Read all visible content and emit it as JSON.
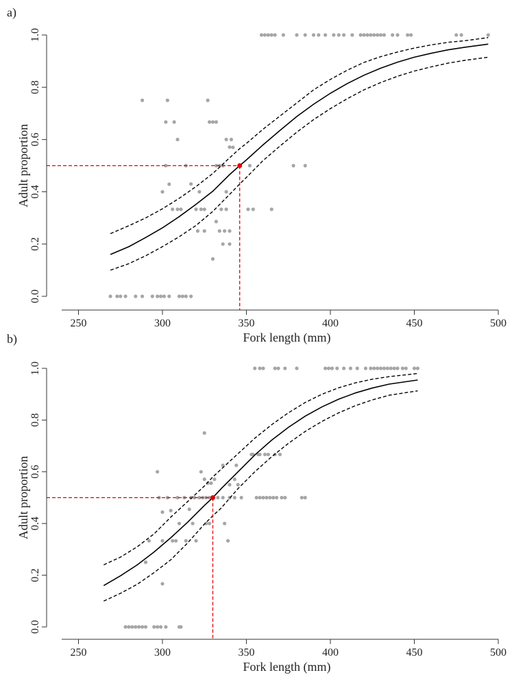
{
  "chart_data": [
    {
      "panel": "a)",
      "type": "scatter",
      "xlabel": "Fork length (mm)",
      "ylabel": "Adult proportion",
      "xlim": [
        240,
        500
      ],
      "ylim": [
        0,
        1
      ],
      "xticks": [
        250,
        300,
        350,
        400,
        450,
        500
      ],
      "yticks": [
        "0.0",
        "0.2",
        "0.4",
        "0.6",
        "0.8",
        "1.0"
      ],
      "grid": false,
      "colors": {
        "points": "#a6a6a6",
        "fit": "#000000",
        "threshold": "#e00000"
      },
      "fit": {
        "type": "logistic",
        "x": [
          269,
          280,
          290,
          300,
          310,
          320,
          330,
          340,
          346,
          350,
          360,
          370,
          380,
          390,
          400,
          410,
          420,
          430,
          440,
          450,
          460,
          470,
          480,
          494
        ],
        "y": [
          0.16,
          0.19,
          0.225,
          0.262,
          0.305,
          0.352,
          0.402,
          0.466,
          0.5,
          0.522,
          0.58,
          0.635,
          0.688,
          0.735,
          0.777,
          0.814,
          0.846,
          0.873,
          0.896,
          0.915,
          0.93,
          0.943,
          0.953,
          0.965
        ],
        "lower": [
          0.1,
          0.125,
          0.155,
          0.19,
          0.228,
          0.271,
          0.325,
          0.39,
          0.43,
          0.455,
          0.52,
          0.575,
          0.628,
          0.676,
          0.718,
          0.756,
          0.79,
          0.818,
          0.842,
          0.862,
          0.878,
          0.892,
          0.903,
          0.915
        ],
        "upper": [
          0.24,
          0.27,
          0.3,
          0.335,
          0.375,
          0.42,
          0.47,
          0.53,
          0.565,
          0.585,
          0.64,
          0.69,
          0.74,
          0.79,
          0.83,
          0.865,
          0.895,
          0.917,
          0.935,
          0.95,
          0.962,
          0.972,
          0.978,
          0.99
        ]
      },
      "threshold": {
        "x": 346,
        "y": 0.5
      },
      "points": [
        [
          269,
          0
        ],
        [
          273,
          0
        ],
        [
          275,
          0
        ],
        [
          278,
          0
        ],
        [
          284,
          0
        ],
        [
          288,
          0
        ],
        [
          294,
          0
        ],
        [
          297,
          0
        ],
        [
          299,
          0
        ],
        [
          301,
          0
        ],
        [
          304,
          0
        ],
        [
          310,
          0
        ],
        [
          312,
          0
        ],
        [
          314,
          0
        ],
        [
          317,
          0
        ],
        [
          288,
          0.75
        ],
        [
          303,
          0.75
        ],
        [
          327,
          0.75
        ],
        [
          302,
          0.667
        ],
        [
          307,
          0.667
        ],
        [
          328,
          0.667
        ],
        [
          330,
          0.667
        ],
        [
          332,
          0.667
        ],
        [
          309,
          0.6
        ],
        [
          338,
          0.6
        ],
        [
          341,
          0.6
        ],
        [
          340,
          0.571
        ],
        [
          342,
          0.57
        ],
        [
          302,
          0.5
        ],
        [
          314,
          0.5
        ],
        [
          332,
          0.5
        ],
        [
          334,
          0.5
        ],
        [
          336,
          0.5
        ],
        [
          346,
          0.5
        ],
        [
          352,
          0.5
        ],
        [
          378,
          0.5
        ],
        [
          385,
          0.5
        ],
        [
          304,
          0.429
        ],
        [
          317,
          0.43
        ],
        [
          300,
          0.4
        ],
        [
          322,
          0.4
        ],
        [
          338,
          0.4
        ],
        [
          306,
          0.333
        ],
        [
          309,
          0.333
        ],
        [
          311,
          0.333
        ],
        [
          320,
          0.333
        ],
        [
          323,
          0.333
        ],
        [
          325,
          0.333
        ],
        [
          335,
          0.333
        ],
        [
          338,
          0.333
        ],
        [
          351,
          0.333
        ],
        [
          354,
          0.333
        ],
        [
          365,
          0.333
        ],
        [
          332,
          0.286
        ],
        [
          321,
          0.25
        ],
        [
          325,
          0.25
        ],
        [
          334,
          0.25
        ],
        [
          337,
          0.25
        ],
        [
          340,
          0.25
        ],
        [
          336,
          0.2
        ],
        [
          340,
          0.2
        ],
        [
          330,
          0.143
        ],
        [
          359,
          1
        ],
        [
          361,
          1
        ],
        [
          363,
          1
        ],
        [
          365,
          1
        ],
        [
          367,
          1
        ],
        [
          372,
          1
        ],
        [
          380,
          1
        ],
        [
          385,
          1
        ],
        [
          390,
          1
        ],
        [
          393,
          1
        ],
        [
          397,
          1
        ],
        [
          402,
          1
        ],
        [
          405,
          1
        ],
        [
          408,
          1
        ],
        [
          413,
          1
        ],
        [
          418,
          1
        ],
        [
          420,
          1
        ],
        [
          422,
          1
        ],
        [
          424,
          1
        ],
        [
          426,
          1
        ],
        [
          428,
          1
        ],
        [
          430,
          1
        ],
        [
          432,
          1
        ],
        [
          437,
          1
        ],
        [
          440,
          1
        ],
        [
          446,
          1
        ],
        [
          448,
          1
        ],
        [
          475,
          1
        ],
        [
          478,
          1
        ],
        [
          494,
          1
        ]
      ]
    },
    {
      "panel": "b)",
      "type": "scatter",
      "xlabel": "Fork length (mm)",
      "ylabel": "Adult proportion",
      "xlim": [
        240,
        500
      ],
      "ylim": [
        0,
        1
      ],
      "xticks": [
        250,
        300,
        350,
        400,
        450,
        500
      ],
      "yticks": [
        "0.0",
        "0.2",
        "0.4",
        "0.6",
        "0.8",
        "1.0"
      ],
      "grid": false,
      "colors": {
        "points": "#a6a6a6",
        "fit": "#000000",
        "threshold": "#e00000"
      },
      "fit": {
        "type": "logistic",
        "x": [
          265,
          275,
          285,
          295,
          305,
          315,
          325,
          330,
          335,
          345,
          355,
          365,
          375,
          385,
          395,
          405,
          415,
          425,
          435,
          452
        ],
        "y": [
          0.16,
          0.198,
          0.24,
          0.29,
          0.345,
          0.405,
          0.47,
          0.5,
          0.535,
          0.6,
          0.665,
          0.722,
          0.772,
          0.815,
          0.851,
          0.881,
          0.905,
          0.924,
          0.939,
          0.955
        ],
        "lower": [
          0.1,
          0.13,
          0.165,
          0.21,
          0.26,
          0.325,
          0.398,
          0.43,
          0.46,
          0.535,
          0.6,
          0.658,
          0.71,
          0.756,
          0.795,
          0.828,
          0.856,
          0.878,
          0.896,
          0.913
        ],
        "upper": [
          0.24,
          0.27,
          0.31,
          0.36,
          0.425,
          0.485,
          0.545,
          0.58,
          0.61,
          0.67,
          0.73,
          0.782,
          0.828,
          0.868,
          0.9,
          0.925,
          0.944,
          0.958,
          0.968,
          0.98
        ]
      },
      "threshold": {
        "x": 330,
        "y": 0.5
      },
      "points": [
        [
          278,
          0
        ],
        [
          280,
          0
        ],
        [
          282,
          0
        ],
        [
          284,
          0
        ],
        [
          286,
          0
        ],
        [
          288,
          0
        ],
        [
          290,
          0
        ],
        [
          295,
          0
        ],
        [
          297,
          0
        ],
        [
          299,
          0
        ],
        [
          302,
          0
        ],
        [
          310,
          0
        ],
        [
          311,
          0
        ],
        [
          325,
          0.75
        ],
        [
          297,
          0.6
        ],
        [
          323,
          0.6
        ],
        [
          336,
          0.625
        ],
        [
          344,
          0.625
        ],
        [
          353,
          0.667
        ],
        [
          354,
          0.667
        ],
        [
          357,
          0.667
        ],
        [
          358,
          0.667
        ],
        [
          361,
          0.667
        ],
        [
          363,
          0.667
        ],
        [
          367,
          0.667
        ],
        [
          370,
          0.667
        ],
        [
          331,
          0.571
        ],
        [
          325,
          0.571
        ],
        [
          343,
          0.571
        ],
        [
          327,
          0.556
        ],
        [
          329,
          0.556
        ],
        [
          340,
          0.55
        ],
        [
          345,
          0.55
        ],
        [
          298,
          0.5
        ],
        [
          303,
          0.5
        ],
        [
          309,
          0.5
        ],
        [
          313,
          0.5
        ],
        [
          317,
          0.5
        ],
        [
          319,
          0.5
        ],
        [
          322,
          0.5
        ],
        [
          324,
          0.5
        ],
        [
          326,
          0.5
        ],
        [
          328,
          0.5
        ],
        [
          333,
          0.5
        ],
        [
          336,
          0.5
        ],
        [
          340,
          0.5
        ],
        [
          343,
          0.5
        ],
        [
          347,
          0.5
        ],
        [
          356,
          0.5
        ],
        [
          358,
          0.5
        ],
        [
          360,
          0.5
        ],
        [
          362,
          0.5
        ],
        [
          364,
          0.5
        ],
        [
          366,
          0.5
        ],
        [
          368,
          0.5
        ],
        [
          371,
          0.5
        ],
        [
          373,
          0.5
        ],
        [
          383,
          0.5
        ],
        [
          385,
          0.5
        ],
        [
          300,
          0.444
        ],
        [
          305,
          0.45
        ],
        [
          316,
          0.455
        ],
        [
          310,
          0.4
        ],
        [
          318,
          0.4
        ],
        [
          326,
          0.4
        ],
        [
          328,
          0.4
        ],
        [
          337,
          0.4
        ],
        [
          292,
          0.333
        ],
        [
          300,
          0.333
        ],
        [
          306,
          0.333
        ],
        [
          308,
          0.333
        ],
        [
          314,
          0.333
        ],
        [
          320,
          0.333
        ],
        [
          339,
          0.333
        ],
        [
          290,
          0.25
        ],
        [
          300,
          0.167
        ],
        [
          355,
          1
        ],
        [
          358,
          1
        ],
        [
          360,
          1
        ],
        [
          367,
          1
        ],
        [
          369,
          1
        ],
        [
          373,
          1
        ],
        [
          380,
          1
        ],
        [
          397,
          1
        ],
        [
          399,
          1
        ],
        [
          401,
          1
        ],
        [
          404,
          1
        ],
        [
          408,
          1
        ],
        [
          412,
          1
        ],
        [
          416,
          1
        ],
        [
          421,
          1
        ],
        [
          424,
          1
        ],
        [
          426,
          1
        ],
        [
          428,
          1
        ],
        [
          430,
          1
        ],
        [
          432,
          1
        ],
        [
          434,
          1
        ],
        [
          436,
          1
        ],
        [
          438,
          1
        ],
        [
          440,
          1
        ],
        [
          443,
          1
        ],
        [
          445,
          1
        ],
        [
          450,
          1
        ],
        [
          452,
          1
        ]
      ]
    }
  ]
}
